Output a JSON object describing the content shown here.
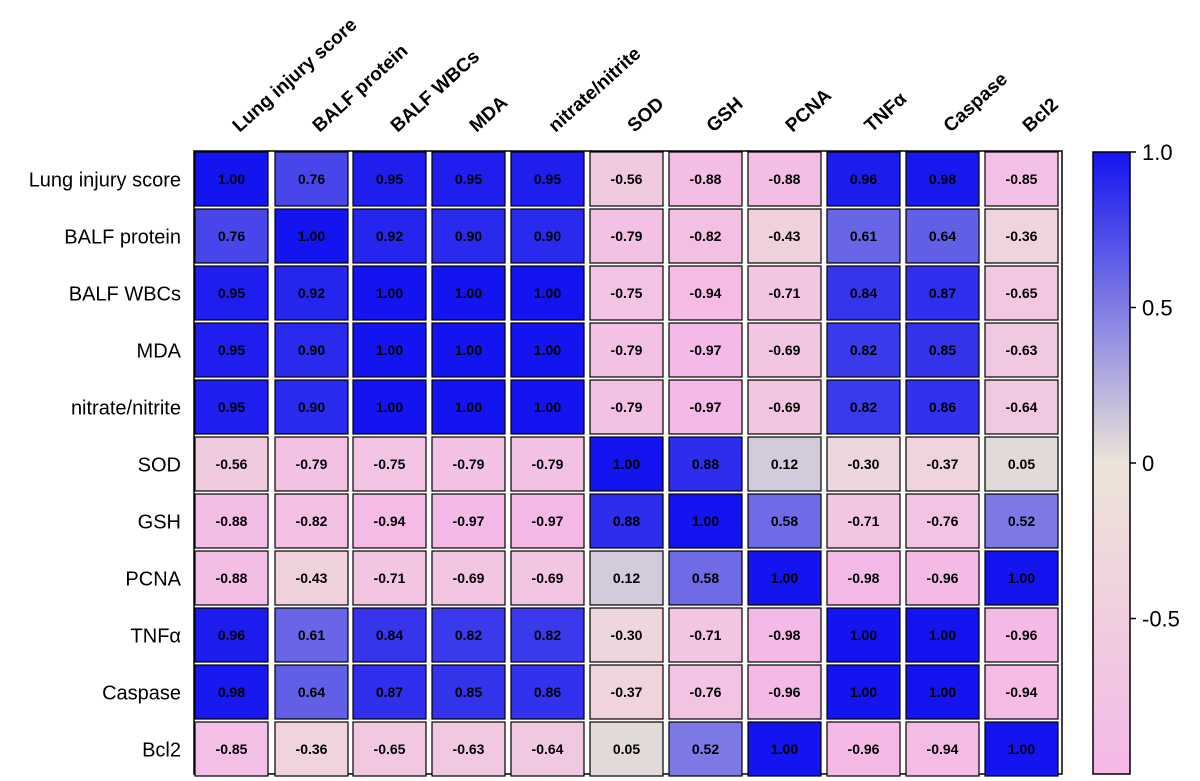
{
  "chart_data": {
    "type": "heatmap",
    "title": "",
    "columns": [
      "Lung injury score",
      "BALF protein",
      "BALF WBCs",
      "MDA",
      "nitrate/nitrite",
      "SOD",
      "GSH",
      "PCNA",
      "TNFα",
      "Caspase",
      "Bcl2"
    ],
    "rows": [
      "Lung injury score",
      "BALF protein",
      "BALF WBCs",
      "MDA",
      "nitrate/nitrite",
      "SOD",
      "GSH",
      "PCNA",
      "TNFα",
      "Caspase",
      "Bcl2"
    ],
    "values": [
      [
        1.0,
        0.76,
        0.95,
        0.95,
        0.95,
        -0.56,
        -0.88,
        -0.88,
        0.96,
        0.98,
        -0.85
      ],
      [
        0.76,
        1.0,
        0.92,
        0.9,
        0.9,
        -0.79,
        -0.82,
        -0.43,
        0.61,
        0.64,
        -0.36
      ],
      [
        0.95,
        0.92,
        1.0,
        1.0,
        1.0,
        -0.75,
        -0.94,
        -0.71,
        0.84,
        0.87,
        -0.65
      ],
      [
        0.95,
        0.9,
        1.0,
        1.0,
        1.0,
        -0.79,
        -0.97,
        -0.69,
        0.82,
        0.85,
        -0.63
      ],
      [
        0.95,
        0.9,
        1.0,
        1.0,
        1.0,
        -0.79,
        -0.97,
        -0.69,
        0.82,
        0.86,
        -0.64
      ],
      [
        -0.56,
        -0.79,
        -0.75,
        -0.79,
        -0.79,
        1.0,
        0.88,
        0.12,
        -0.3,
        -0.37,
        0.05
      ],
      [
        -0.88,
        -0.82,
        -0.94,
        -0.97,
        -0.97,
        0.88,
        1.0,
        0.58,
        -0.71,
        -0.76,
        0.52
      ],
      [
        -0.88,
        -0.43,
        -0.71,
        -0.69,
        -0.69,
        0.12,
        0.58,
        1.0,
        -0.98,
        -0.96,
        1.0
      ],
      [
        0.96,
        0.61,
        0.84,
        0.82,
        0.82,
        -0.3,
        -0.71,
        -0.98,
        1.0,
        1.0,
        -0.96
      ],
      [
        0.98,
        0.64,
        0.87,
        0.85,
        0.86,
        -0.37,
        -0.76,
        -0.96,
        1.0,
        1.0,
        -0.94
      ],
      [
        -0.85,
        -0.36,
        -0.65,
        -0.63,
        -0.64,
        0.05,
        0.52,
        1.0,
        -0.96,
        -0.94,
        1.0
      ]
    ],
    "colorbar": {
      "range": [
        -1.0,
        1.0
      ],
      "ticks": [
        {
          "value": 1.0,
          "label": "1.0"
        },
        {
          "value": 0.5,
          "label": "0.5"
        },
        {
          "value": 0.0,
          "label": "0"
        },
        {
          "value": -0.5,
          "label": "-0.5"
        }
      ],
      "colors": {
        "positive": "#1414f0",
        "mid": "#ece4d8",
        "negative": "#f4b8e6"
      }
    }
  }
}
